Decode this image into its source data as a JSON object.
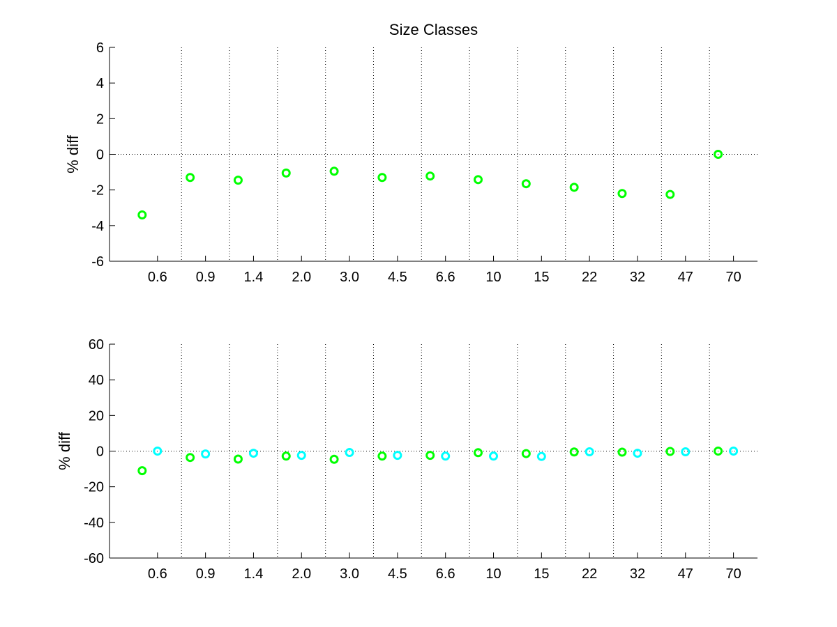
{
  "chart_data": [
    {
      "type": "scatter",
      "title": "Size Classes",
      "ylabel": "% diff",
      "xlabel": "",
      "categories": [
        "0.6",
        "0.9",
        "1.4",
        "2.0",
        "3.0",
        "4.5",
        "6.6",
        "10",
        "15",
        "22",
        "32",
        "47",
        "70"
      ],
      "yticks": [
        "6",
        "4",
        "2",
        "0",
        "-2",
        "-4",
        "-6"
      ],
      "ylim": [
        -6,
        6
      ],
      "grid": "vertical dotted between categories, dotted zero line",
      "series": [
        {
          "color": "#00ff00",
          "marker": "circle",
          "offset": "left",
          "values": [
            -3.4,
            -1.3,
            -1.45,
            -1.05,
            -0.95,
            -1.3,
            -1.22,
            -1.42,
            -1.65,
            -1.85,
            -2.2,
            -2.25,
            0.0
          ]
        }
      ]
    },
    {
      "type": "scatter",
      "title": "",
      "ylabel": "% diff",
      "xlabel": "",
      "categories": [
        "0.6",
        "0.9",
        "1.4",
        "2.0",
        "3.0",
        "4.5",
        "6.6",
        "10",
        "15",
        "22",
        "32",
        "47",
        "70"
      ],
      "yticks": [
        "60",
        "40",
        "20",
        "0",
        "-20",
        "-40",
        "-60"
      ],
      "ylim": [
        -60,
        60
      ],
      "grid": "vertical dotted between categories, dotted zero line",
      "series": [
        {
          "color": "#00ff00",
          "marker": "circle",
          "offset": "left",
          "values": [
            -11,
            -3.6,
            -4.5,
            -2.8,
            -4.6,
            -2.8,
            -2.4,
            -0.9,
            -1.4,
            -0.5,
            -0.6,
            -0.2,
            0.0
          ]
        },
        {
          "color": "#00ffff",
          "marker": "circle",
          "offset": "right",
          "values": [
            0.0,
            -1.6,
            -1.2,
            -2.4,
            -0.8,
            -2.4,
            -2.8,
            -2.8,
            -3.0,
            -0.4,
            -1.2,
            -0.4,
            0.0
          ]
        }
      ]
    }
  ]
}
